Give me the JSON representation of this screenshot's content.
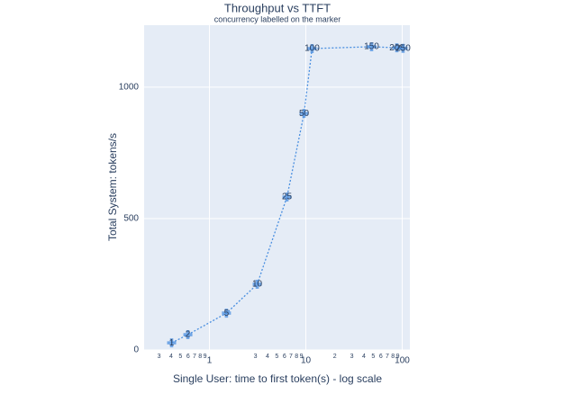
{
  "chart_data": {
    "type": "line",
    "title": "Throughput vs TTFT",
    "subtitle": "concurrency labelled on the marker",
    "x_label": "Single User: time to first token(s) - log scale",
    "y_label": "Total System: tokens/s",
    "x": [
      0.405,
      0.597,
      1.5,
      3.13,
      6.37,
      9.58,
      11.6,
      48.1,
      87.9,
      102
    ],
    "series": [
      {
        "color": "#4a8fe0",
        "values": [
          27,
          58,
          140,
          250,
          582,
          900,
          1147,
          1154,
          1150,
          1148
        ],
        "labels": [
          1,
          2,
          5,
          10,
          25,
          50,
          100,
          150,
          200,
          250
        ]
      }
    ],
    "xscale": "log",
    "xlim": [
      0.21,
      120
    ],
    "ylim": [
      0,
      1236
    ],
    "xticks": [
      {
        "value": 0.3,
        "label": "3"
      },
      {
        "value": 0.4,
        "label": "4"
      },
      {
        "value": 0.5,
        "label": "5"
      },
      {
        "value": 0.6,
        "label": "6"
      },
      {
        "value": 0.7,
        "label": "7"
      },
      {
        "value": 0.8,
        "label": "8"
      },
      {
        "value": 0.9,
        "label": "9"
      },
      1,
      {
        "value": 3,
        "label": "3"
      },
      {
        "value": 4,
        "label": "4"
      },
      {
        "value": 5,
        "label": "5"
      },
      {
        "value": 6,
        "label": "6"
      },
      {
        "value": 7,
        "label": "7"
      },
      {
        "value": 8,
        "label": "8"
      },
      {
        "value": 9,
        "label": "9"
      },
      10,
      {
        "value": 20,
        "label": "2"
      },
      {
        "value": 30,
        "label": "3"
      },
      {
        "value": 40,
        "label": "4"
      },
      {
        "value": 50,
        "label": "5"
      },
      {
        "value": 60,
        "label": "6"
      },
      {
        "value": 70,
        "label": "7"
      },
      {
        "value": 80,
        "label": "8"
      },
      {
        "value": 90,
        "label": "9"
      },
      100
    ],
    "yticks": [
      0,
      500,
      1000
    ],
    "grid": true
  }
}
